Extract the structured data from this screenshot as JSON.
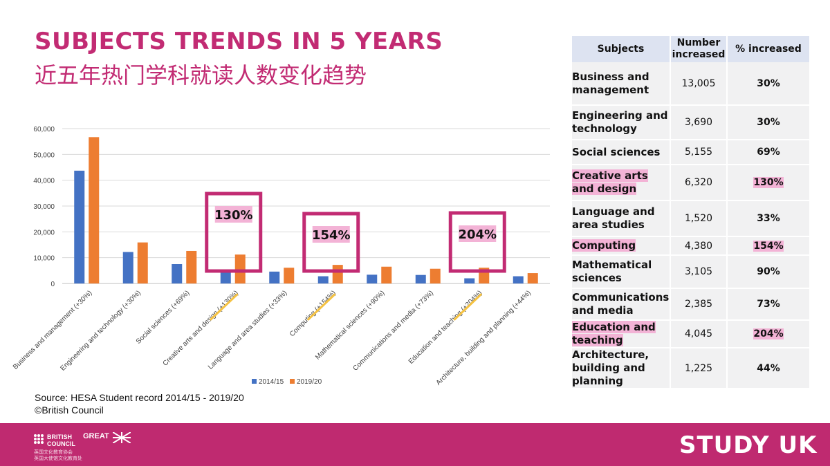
{
  "header": {
    "title_en": "SUBJECTS TRENDS IN 5 YEARS",
    "title_cn": "近五年热门学科就读人数变化趋势"
  },
  "source": {
    "line1": "Source: HESA Student record 2014/15 - 2019/20",
    "line2": "©British Council"
  },
  "callouts": [
    "130%",
    "154%",
    "204%"
  ],
  "colors": {
    "brand": "#c22b73",
    "series_2014": "#4472c4",
    "series_2019": "#ed7d31",
    "highlight": "#f3b3d6",
    "underline": "#f5c242"
  },
  "chart_data": {
    "type": "bar",
    "categories": [
      "Business and management (+30%)",
      "Engineering and technology (+30%)",
      "Social sciences (+69%)",
      "Creative arts and design (+130%)",
      "Language and area studies (+33%)",
      "Computing (+154%)",
      "Mathematical sciences (+90%)",
      "Communications and media (+73%)",
      "Education and teaching (+204%)",
      "Architecture, building and planning (+44%)"
    ],
    "series": [
      {
        "name": "2014/15",
        "values": [
          43700,
          12200,
          7500,
          4900,
          4600,
          2800,
          3400,
          3300,
          2000,
          2800
        ]
      },
      {
        "name": "2019/20",
        "values": [
          56700,
          15900,
          12600,
          11200,
          6100,
          7200,
          6500,
          5700,
          6100,
          4000
        ]
      }
    ],
    "ylim": [
      0,
      60000
    ],
    "yticks": [
      "0",
      "10,000",
      "20,000",
      "30,000",
      "40,000",
      "50,000",
      "60,000"
    ],
    "legend_position": "bottom",
    "grid": true
  },
  "table": {
    "headers": [
      "Subjects",
      "Number increased",
      "% increased"
    ],
    "rows": [
      {
        "subject": "Business and management",
        "number": "13,005",
        "pct": "30%",
        "highlight": false
      },
      {
        "subject": "Engineering and technology",
        "number": "3,690",
        "pct": "30%",
        "highlight": false
      },
      {
        "subject": "Social sciences",
        "number": "5,155",
        "pct": "69%",
        "highlight": false
      },
      {
        "subject": "Creative arts and design",
        "number": "6,320",
        "pct": "130%",
        "highlight": true
      },
      {
        "subject": "Language and area studies",
        "number": "1,520",
        "pct": "33%",
        "highlight": false
      },
      {
        "subject": "Computing",
        "number": "4,380",
        "pct": "154%",
        "highlight": true
      },
      {
        "subject": "Mathematical sciences",
        "number": "3,105",
        "pct": "90%",
        "highlight": false
      },
      {
        "subject": "Communications and media",
        "number": "2,385",
        "pct": "73%",
        "highlight": false
      },
      {
        "subject": "Education and teaching",
        "number": "4,045",
        "pct": "204%",
        "highlight": true
      },
      {
        "subject": "Architecture, building and planning",
        "number": "1,225",
        "pct": "44%",
        "highlight": false
      }
    ]
  },
  "footer": {
    "bc_name": "BRITISH COUNCIL",
    "great": "GREAT",
    "bc_cn_1": "英国文化教育协会",
    "bc_cn_2": "英国大使馆文化教育处",
    "study_uk": "STUDY UK"
  }
}
